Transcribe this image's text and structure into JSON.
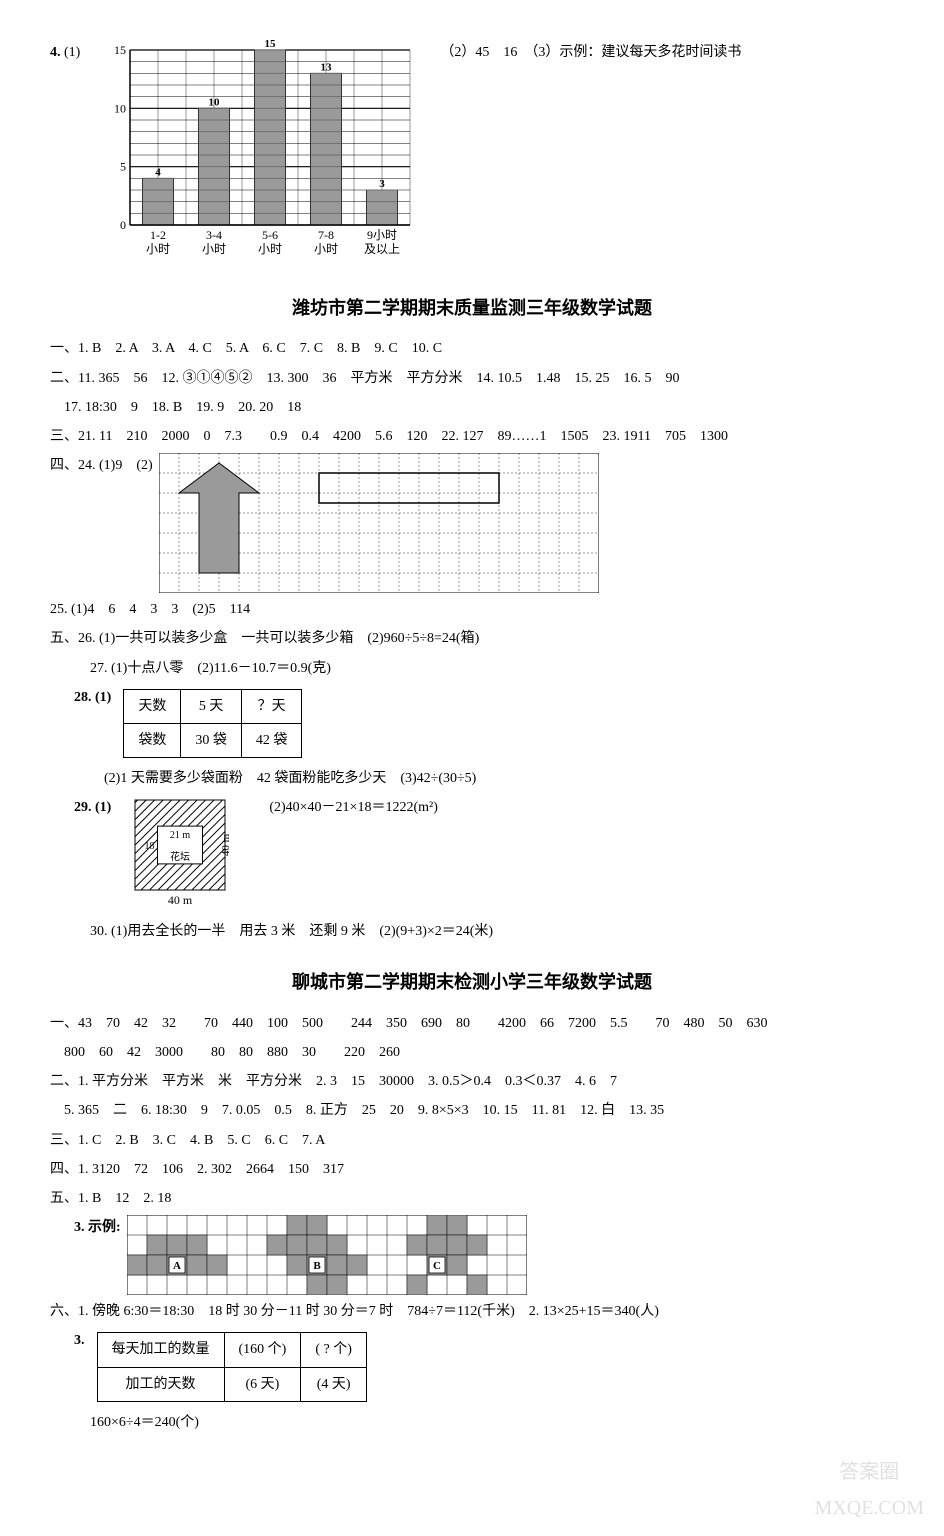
{
  "q4": {
    "label": "4.",
    "sub1_label": "(1)",
    "chart": {
      "type": "bar",
      "y_max": 15,
      "y_ticks": [
        0,
        5,
        10,
        15
      ],
      "categories": [
        "1-2\n小时",
        "3-4\n小时",
        "5-6\n小时",
        "7-8\n小时",
        "9小时\n及以上"
      ],
      "values": [
        4,
        10,
        15,
        13,
        3
      ],
      "bar_color": "#9a9a9a",
      "bar_stripe": "#6f6f6f",
      "grid_color": "#000000",
      "bg": "#ffffff",
      "label_fontsize": 12
    },
    "right_text": "（2）45　16　（3）示例：建议每天多花时间读书"
  },
  "weifang": {
    "title": "潍坊市第二学期期末质量监测三年级数学试题",
    "lines": [
      "一、1. B　2. A　3. A　4. C　5. A　6. C　7. C　8. B　9. C　10. C",
      "二、11. 365　56　12. ③①④⑤②　13. 300　36　平方米　平方分米　14. 10.5　1.48　15. 25　16. 5　90",
      "　17. 18:30　9　18. B　19. 9　20. 20　18",
      "三、21. 11　210　2000　0　7.3　　0.9　0.4　4200　5.6　120　22. 127　89……1　1505　23. 1911　705　1300"
    ],
    "q24_prefix": "四、24. (1)9　(2)",
    "q24_grid": {
      "cols": 22,
      "rows": 7,
      "cell": 20,
      "arrow_fill": "#9a9a9a",
      "rect_outline": "#000"
    },
    "q25": "25. (1)4　6　4　3　3　(2)5　114",
    "q26": "五、26. (1)一共可以装多少盒　一共可以装多少箱　(2)960÷5÷8=24(箱)",
    "q27": "27. (1)十点八零　(2)11.6－10.7＝0.9(克)",
    "q28_label": "28. (1)",
    "q28_table": {
      "rows": [
        [
          "天数",
          "5 天",
          "？天"
        ],
        [
          "袋数",
          "30 袋",
          "42 袋"
        ]
      ]
    },
    "q28_2": "　(2)1 天需要多少袋面粉　42 袋面粉能吃多少天　(3)42÷(30÷5)",
    "q29_label": "29. (1)",
    "q29_text": "(2)40×40－21×18＝1222(m²)",
    "q29_fig": {
      "outer": 40,
      "inner_w": 21,
      "inner_h": 18,
      "label_bottom": "40 m",
      "label_right": "40 m",
      "label_top_inner": "21 m",
      "label_left_inner": "18",
      "label_inner": "花坛"
    },
    "q30": "30. (1)用去全长的一半　用去 3 米　还剩 9 米　(2)(9+3)×2＝24(米)"
  },
  "liaocheng": {
    "title": "聊城市第二学期期末检测小学三年级数学试题",
    "lines": [
      "一、43　70　42　32　　70　440　100　500　　244　350　690　80　　4200　66　7200　5.5　　70　480　50　630",
      "　800　60　42　3000　　80　80　880　30　　220　260",
      "二、1. 平方分米　平方米　米　平方分米　2. 3　15　30000　3. 0.5＞0.4　0.3＜0.37　4. 6　7",
      "　5. 365　二　6. 18:30　9　7. 0.05　0.5　8. 正方　25　20　9. 8×5×3　10. 15　11. 81　12. 白　13. 35",
      "三、1. C　2. B　3. C　4. B　5. C　6. C　7. A",
      "四、1. 3120　72　106　2. 302　2664　150　317",
      "五、1. B　12　2. 18"
    ],
    "q3_label": "3. 示例:",
    "q3_grid": {
      "cols": 20,
      "rows": 4,
      "cell": 20,
      "fill": "#9a9a9a",
      "labels": [
        "A",
        "B",
        "C"
      ],
      "shapes": {
        "A_cells": [
          [
            1,
            1
          ],
          [
            1,
            2
          ],
          [
            1,
            3
          ],
          [
            2,
            0
          ],
          [
            2,
            1
          ],
          [
            2,
            2
          ],
          [
            2,
            3
          ],
          [
            2,
            4
          ]
        ],
        "A_label_cell": [
          2,
          2
        ],
        "B_cells": [
          [
            0,
            8
          ],
          [
            0,
            9
          ],
          [
            1,
            7
          ],
          [
            1,
            8
          ],
          [
            1,
            9
          ],
          [
            1,
            10
          ],
          [
            2,
            8
          ],
          [
            2,
            9
          ],
          [
            2,
            10
          ],
          [
            2,
            11
          ],
          [
            3,
            9
          ],
          [
            3,
            10
          ]
        ],
        "B_label_cell": [
          2,
          9
        ],
        "C_cells": [
          [
            0,
            15
          ],
          [
            0,
            16
          ],
          [
            1,
            14
          ],
          [
            1,
            15
          ],
          [
            1,
            16
          ],
          [
            1,
            17
          ],
          [
            2,
            15
          ],
          [
            2,
            16
          ],
          [
            3,
            14
          ],
          [
            3,
            17
          ]
        ],
        "C_label_cell": [
          2,
          15
        ]
      }
    },
    "q6_1": "六、1. 傍晚 6:30＝18:30　18 时 30 分－11 时 30 分＝7 时　784÷7＝112(千米)　2. 13×25+15＝340(人)",
    "q3b_label": "3.",
    "q3b_table": {
      "rows": [
        [
          "每天加工的数量",
          "(160 个)",
          "( ? 个)"
        ],
        [
          "加工的天数",
          "(6 天)",
          "(4 天)"
        ]
      ]
    },
    "q3b_calc": "160×6÷4＝240(个)"
  },
  "watermark": "答案圈\nMXQE.COM"
}
